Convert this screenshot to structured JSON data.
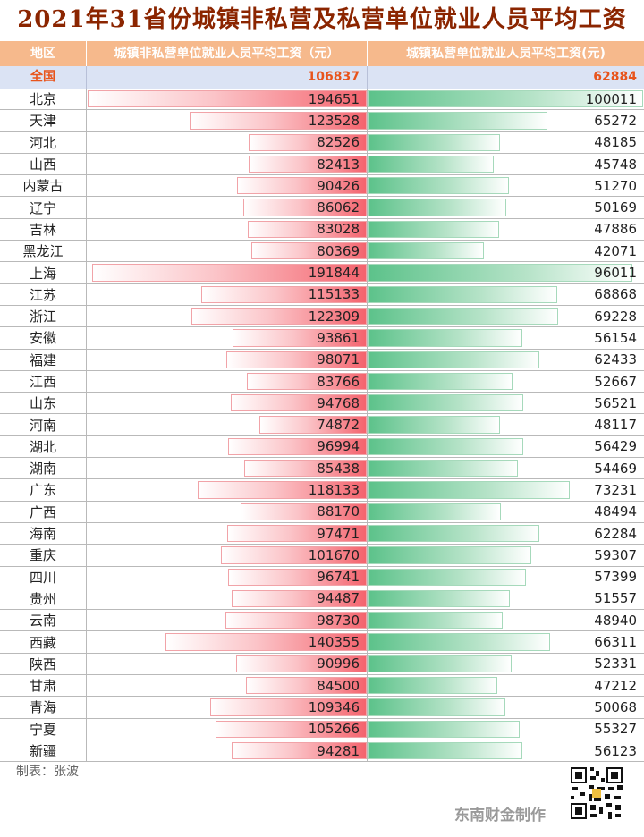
{
  "title": "2021年31省份城镇非私营及私营单位就业人员平均工资",
  "header": {
    "region": "地区",
    "left": "城镇非私营单位就业人员平均工资（元）",
    "right": "城镇私营单位就业人员平均工资(元)"
  },
  "national": {
    "region": "全国",
    "non_private": "106837",
    "private": "62884"
  },
  "chart_data": {
    "type": "bar",
    "categories": [
      "北京",
      "天津",
      "河北",
      "山西",
      "内蒙古",
      "辽宁",
      "吉林",
      "黑龙江",
      "上海",
      "江苏",
      "浙江",
      "安徽",
      "福建",
      "江西",
      "山东",
      "河南",
      "湖北",
      "湖南",
      "广东",
      "广西",
      "海南",
      "重庆",
      "四川",
      "贵州",
      "云南",
      "西藏",
      "陕西",
      "甘肃",
      "青海",
      "宁夏",
      "新疆"
    ],
    "series": [
      {
        "name": "城镇非私营单位就业人员平均工资（元）",
        "values": [
          194651,
          123528,
          82526,
          82413,
          90426,
          86062,
          83028,
          80369,
          191844,
          115133,
          122309,
          93861,
          98071,
          83766,
          94768,
          74872,
          96994,
          85438,
          118133,
          88170,
          97471,
          101670,
          96741,
          94487,
          98730,
          140355,
          90996,
          84500,
          109346,
          105266,
          94281
        ]
      },
      {
        "name": "城镇私营单位就业人员平均工资(元)",
        "values": [
          100011,
          65272,
          48185,
          45748,
          51270,
          50169,
          47886,
          42071,
          96011,
          68868,
          69228,
          56154,
          62433,
          52667,
          56521,
          48117,
          56429,
          54469,
          73231,
          48494,
          62284,
          59307,
          57399,
          51557,
          48940,
          66311,
          52331,
          47212,
          50068,
          55327,
          56123
        ]
      }
    ],
    "colors": {
      "non_private": "#f4636d",
      "private": "#5cc28a"
    }
  },
  "credit": "制表：张波",
  "brand": "东南财金制作"
}
